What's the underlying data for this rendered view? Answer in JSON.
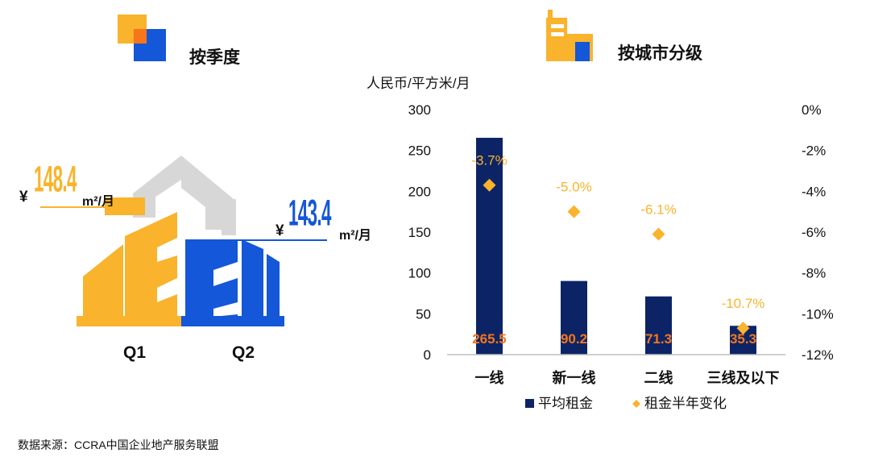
{
  "left_panel": {
    "title": "按季度",
    "icon": "overlapping-squares-icon",
    "q1": {
      "label": "Q1",
      "currency": "¥",
      "value": "148.4",
      "unit": "m²/月",
      "color": "#f9b32c"
    },
    "q2": {
      "label": "Q2",
      "currency": "¥",
      "value": "143.4",
      "unit": "m²/月",
      "color": "#1457d8"
    }
  },
  "right_panel": {
    "title": "按城市分级",
    "icon": "buildings-icon"
  },
  "chart_data": {
    "type": "bar",
    "ylabel": "人民币/平方米/月",
    "categories": [
      "一线",
      "新一线",
      "二线",
      "三线及以下"
    ],
    "ylim": [
      0,
      300
    ],
    "yticks": [
      0,
      50,
      100,
      150,
      200,
      250,
      300
    ],
    "y2lim": [
      -12,
      0
    ],
    "y2ticks": [
      "0%",
      "-2%",
      "-4%",
      "-6%",
      "-8%",
      "-10%",
      "-12%"
    ],
    "series": [
      {
        "name": "平均租金",
        "type": "bar",
        "axis": "left",
        "color": "#0c2466",
        "values": [
          265.5,
          90.2,
          71.3,
          35.3
        ],
        "labels": [
          "265.5",
          "90.2",
          "71.3",
          "35.3"
        ]
      },
      {
        "name": "租金半年变化",
        "type": "scatter",
        "axis": "right",
        "color": "#f9b32c",
        "values": [
          -3.7,
          -5.0,
          -6.1,
          -10.7
        ],
        "labels": [
          "-3.7%",
          "-5.0%",
          "-6.1%",
          "-10.7%"
        ]
      }
    ],
    "legend": "bottom"
  },
  "source": "数据来源：CCRA中国企业地产服务联盟"
}
